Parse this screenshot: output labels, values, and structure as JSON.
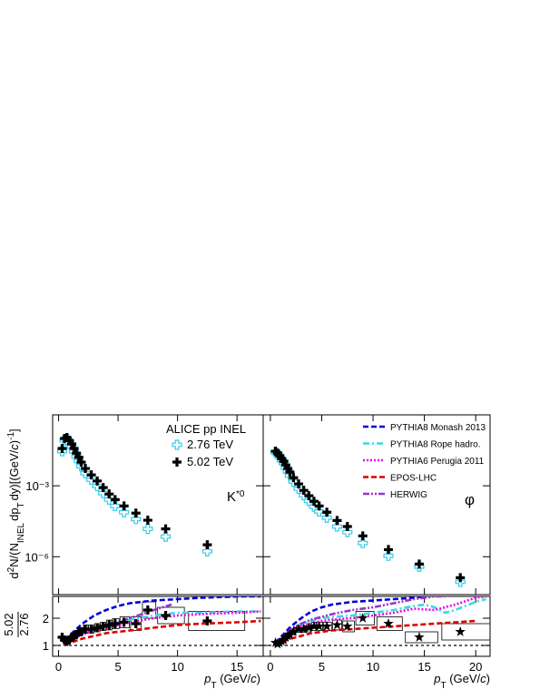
{
  "chart_data": [
    {
      "type": "spectrum",
      "log_y": true,
      "y_label": [
        "d",
        "2",
        "N/(N",
        "INEL",
        "dp",
        "T",
        "dy)[(GeV/",
        "c",
        ")",
        "-1",
        "]"
      ],
      "annotation": [
        "K",
        "*0"
      ],
      "legend_title": "ALICE pp INEL",
      "legend": "upper-right",
      "xlim": [
        -0.5,
        17.2
      ],
      "xticks": [
        0,
        5,
        10,
        15
      ],
      "ylim": [
        2.5e-08,
        1
      ],
      "yticks": [
        {
          "value": 1e-06,
          "label": "10⁻⁶"
        },
        {
          "value": 0.001,
          "label": "10⁻³"
        }
      ],
      "x": [
        0.3,
        0.5,
        0.7,
        0.9,
        1.1,
        1.3,
        1.5,
        1.7,
        1.9,
        2.25,
        2.75,
        3.25,
        3.75,
        4.25,
        4.75,
        5.5,
        6.5,
        7.5,
        9,
        12.5
      ],
      "series": [
        {
          "name": "2.76 TeV",
          "color": "#33ccee",
          "marker": "open-cross",
          "values": [
            0.029,
            0.083,
            0.096,
            0.069,
            0.045,
            0.028,
            0.017,
            0.011,
            0.0067,
            0.0034,
            0.0018,
            0.00097,
            0.00049,
            0.00026,
            0.00014,
            7.6e-05,
            3.9e-05,
            1.5e-05,
            7.1e-06,
            1.7e-06
          ]
        },
        {
          "name": "5.02 TeV",
          "color": "#000000",
          "marker": "cross",
          "values": [
            0.038,
            0.1,
            0.11,
            0.083,
            0.059,
            0.038,
            0.024,
            0.016,
            0.01,
            0.0054,
            0.0029,
            0.0016,
            0.00084,
            0.00045,
            0.00026,
            0.00014,
            7e-05,
            3.5e-05,
            1.5e-05,
            3.2e-06
          ]
        }
      ]
    },
    {
      "type": "ratio",
      "ratio_label": {
        "numerator": "5.02",
        "denominator": "2.76"
      },
      "x_label": [
        "p",
        "T",
        " (GeV/",
        "c",
        ")"
      ],
      "xlim": [
        -0.5,
        17.2
      ],
      "xticks": [
        0,
        5,
        10,
        15
      ],
      "ylim": [
        0.6,
        2.8
      ],
      "yticks": [
        1,
        2
      ],
      "reference": 1,
      "x": [
        0.3,
        0.5,
        0.7,
        0.9,
        1.1,
        1.3,
        1.5,
        1.7,
        1.9,
        2.25,
        2.75,
        3.25,
        3.75,
        4.25,
        4.75,
        5.5,
        6.5,
        7.5,
        9,
        12.5
      ],
      "series": [
        {
          "color": "#000000",
          "marker": "cross",
          "values": [
            1.3,
            1.2,
            1.15,
            1.2,
            1.3,
            1.35,
            1.4,
            1.5,
            1.5,
            1.6,
            1.6,
            1.65,
            1.7,
            1.75,
            1.8,
            1.85,
            1.8,
            2.3,
            2.1,
            1.9
          ],
          "errors": [
            0.1,
            0.1,
            0.1,
            0.1,
            0.1,
            0.1,
            0.12,
            0.12,
            0.12,
            0.15,
            0.15,
            0.15,
            0.15,
            0.18,
            0.18,
            0.2,
            0.25,
            0.3,
            0.3,
            0.35
          ]
        }
      ],
      "models": [
        {
          "color": "#0000dd",
          "dash": "dashed",
          "x": [
            0.5,
            1,
            2,
            3,
            4,
            5,
            6,
            8,
            10,
            12,
            15,
            17
          ],
          "values": [
            1.2,
            1.4,
            1.8,
            2.1,
            2.3,
            2.45,
            2.55,
            2.65,
            2.7,
            2.75,
            2.8,
            2.8
          ]
        },
        {
          "color": "#33dddd",
          "dash": "dash-dot",
          "x": [
            0.5,
            1,
            2,
            3,
            4,
            5,
            6,
            8,
            10,
            12,
            15,
            17
          ],
          "values": [
            1.1,
            1.2,
            1.45,
            1.6,
            1.75,
            1.85,
            1.95,
            2.1,
            2.2,
            2.2,
            2.25,
            2.25
          ]
        },
        {
          "color": "#ee00ee",
          "dash": "dotted",
          "x": [
            0.5,
            1,
            2,
            3,
            4,
            5,
            6,
            8,
            10,
            12,
            15,
            17
          ],
          "values": [
            1.1,
            1.2,
            1.4,
            1.55,
            1.65,
            1.75,
            1.85,
            2.0,
            2.1,
            2.15,
            2.2,
            2.25
          ]
        },
        {
          "color": "#dd0000",
          "dash": "dashed",
          "x": [
            0.5,
            1,
            2,
            3,
            4,
            5,
            6,
            8,
            10,
            12,
            15,
            17
          ],
          "values": [
            1.05,
            1.1,
            1.25,
            1.35,
            1.45,
            1.5,
            1.55,
            1.65,
            1.75,
            1.8,
            1.85,
            1.9
          ]
        },
        {
          "color": "#9933cc",
          "dash": "dash-dot-dot",
          "x": [
            0.5,
            1,
            2,
            3,
            4,
            5,
            6,
            8,
            9.5
          ],
          "values": [
            1.1,
            1.2,
            1.45,
            1.6,
            1.75,
            1.85,
            2.0,
            2.3,
            2.5
          ]
        }
      ]
    },
    {
      "type": "spectrum",
      "log_y": true,
      "annotation": [
        "φ"
      ],
      "xlim": [
        -0.7,
        21.4
      ],
      "xticks": [
        0,
        5,
        10,
        15,
        20
      ],
      "ylim": [
        2.5e-08,
        1
      ],
      "yticks": [
        1e-06,
        0.001
      ],
      "x": [
        0.5,
        0.7,
        0.9,
        1.1,
        1.3,
        1.5,
        1.7,
        1.9,
        2.25,
        2.75,
        3.25,
        3.75,
        4.25,
        4.75,
        5.5,
        6.5,
        7.5,
        9,
        11.5,
        14.5,
        18.5
      ],
      "series": [
        {
          "color": "#33ccee",
          "marker": "open-cross",
          "values": [
            0.026,
            0.023,
            0.017,
            0.012,
            0.0092,
            0.0058,
            0.004,
            0.0027,
            0.0015,
            0.00075,
            0.0004,
            0.00023,
            0.00013,
            8.2e-05,
            4.5e-05,
            1.9e-05,
            1.1e-05,
            3.8e-06,
            1.1e-06,
            3.8e-07,
            8.7e-08
          ]
        },
        {
          "color": "#000000",
          "marker": "cross",
          "values": [
            0.029,
            0.024,
            0.019,
            0.014,
            0.011,
            0.0076,
            0.0054,
            0.0038,
            0.0022,
            0.0012,
            0.00064,
            0.00038,
            0.00022,
            0.00014,
            7.6e-05,
            3.4e-05,
            1.9e-05,
            7.6e-06,
            2e-06,
            4.9e-07,
            1.3e-07
          ]
        }
      ]
    },
    {
      "type": "ratio",
      "x_label": [
        "p",
        "T",
        " (GeV/",
        "c",
        ")"
      ],
      "xlim": [
        -0.7,
        21.4
      ],
      "xticks": [
        0,
        5,
        10,
        15,
        20
      ],
      "ylim": [
        0.6,
        2.8
      ],
      "yticks": [
        1,
        2
      ],
      "reference": 1,
      "legend": "upper-right",
      "x": [
        0.5,
        0.7,
        0.9,
        1.1,
        1.3,
        1.5,
        1.7,
        1.9,
        2.25,
        2.75,
        3.25,
        3.75,
        4.25,
        4.75,
        5.5,
        6.5,
        7.5,
        9,
        11.5,
        14.5,
        18.5
      ],
      "series": [
        {
          "color": "#000000",
          "marker": "star",
          "values": [
            1.1,
            1.05,
            1.1,
            1.15,
            1.2,
            1.3,
            1.35,
            1.4,
            1.5,
            1.6,
            1.6,
            1.65,
            1.7,
            1.7,
            1.7,
            1.75,
            1.7,
            2.0,
            1.8,
            1.3,
            1.5
          ],
          "errors": [
            0.08,
            0.08,
            0.08,
            0.08,
            0.1,
            0.1,
            0.1,
            0.1,
            0.12,
            0.12,
            0.12,
            0.15,
            0.15,
            0.15,
            0.15,
            0.18,
            0.2,
            0.25,
            0.25,
            0.2,
            0.3
          ]
        }
      ],
      "models": [
        {
          "name": "PYTHIA8 Monash 2013",
          "color": "#0000dd",
          "dash": "dashed",
          "x": [
            0.5,
            1,
            2,
            3,
            4,
            5,
            6,
            8,
            10,
            12,
            14,
            15
          ],
          "values": [
            1.1,
            1.3,
            1.7,
            2.0,
            2.25,
            2.4,
            2.5,
            2.6,
            2.65,
            2.7,
            2.75,
            2.8
          ]
        },
        {
          "name": "PYTHIA8 Rope hadro.",
          "color": "#33dddd",
          "dash": "dash-dot",
          "x": [
            0.5,
            1,
            2,
            3,
            4,
            5,
            6,
            8,
            10,
            12,
            14,
            15,
            16,
            17,
            18,
            20,
            21
          ],
          "values": [
            1.1,
            1.25,
            1.55,
            1.75,
            1.9,
            2.0,
            2.05,
            2.1,
            2.2,
            2.3,
            2.45,
            2.5,
            2.4,
            2.2,
            2.3,
            2.6,
            2.7
          ]
        },
        {
          "name": "PYTHIA6 Perugia 2011",
          "color": "#ee00ee",
          "dash": "dotted",
          "x": [
            0.5,
            1,
            2,
            3,
            4,
            5,
            6,
            8,
            10,
            12,
            14,
            16,
            18,
            20,
            21
          ],
          "values": [
            1.1,
            1.2,
            1.5,
            1.7,
            1.8,
            1.9,
            1.95,
            2.0,
            2.1,
            2.2,
            2.35,
            2.3,
            2.5,
            2.75,
            2.8
          ]
        },
        {
          "name": "EPOS-LHC",
          "color": "#dd0000",
          "dash": "dashed",
          "x": [
            0.5,
            1,
            2,
            3,
            4,
            5,
            6,
            8,
            10,
            12,
            14,
            16,
            18,
            20
          ],
          "values": [
            1.05,
            1.1,
            1.25,
            1.35,
            1.45,
            1.5,
            1.55,
            1.6,
            1.65,
            1.7,
            1.75,
            1.8,
            1.85,
            1.9
          ]
        },
        {
          "name": "HERWIG",
          "color": "#9933cc",
          "dash": "dash-dot-dot",
          "x": [
            0.5,
            1,
            2,
            3,
            4,
            5,
            6,
            8,
            10,
            12,
            14,
            16,
            17
          ],
          "values": [
            1.1,
            1.25,
            1.6,
            1.8,
            1.95,
            2.05,
            2.15,
            2.3,
            2.4,
            2.55,
            2.7,
            2.8,
            2.8
          ]
        }
      ]
    }
  ]
}
